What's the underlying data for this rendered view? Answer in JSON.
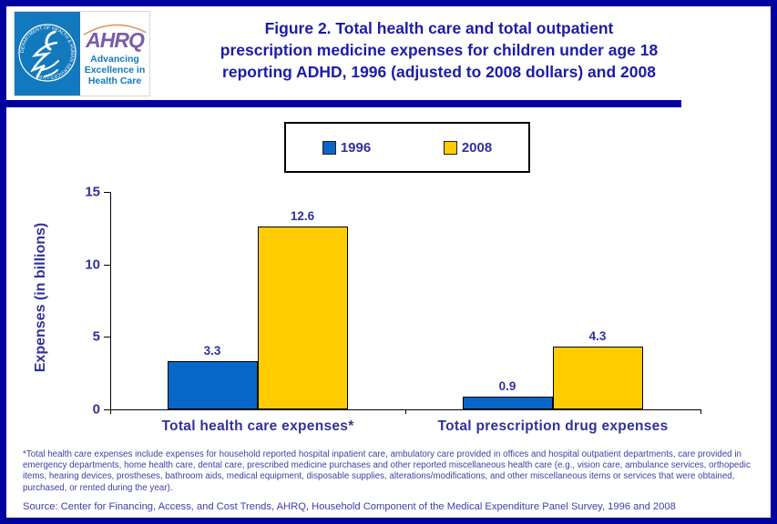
{
  "colors": {
    "border_navy": "#0101A0",
    "title_navy": "#1C1CA8",
    "chart_text": "#31319C",
    "note_text": "#4040A8",
    "bar_1996_blue": "#0667C9",
    "bar_2008_yellow": "#FFCC00",
    "hhs_blue": "#1279BE",
    "ahrq_purple": "#7A5CA8",
    "arc_orange": "#E0995A"
  },
  "logo": {
    "seal_text": "DEPARTMENT OF HEALTH & HUMAN SERVICES • USA",
    "ahrq": "AHRQ",
    "tagline_lines": [
      "Advancing",
      "Excellence in",
      "Health Care"
    ]
  },
  "header": {
    "title": "Figure 2. Total health care and total outpatient prescription medicine expenses for children under age 18 reporting ADHD, 1996 (adjusted to 2008 dollars) and 2008",
    "title_lines": [
      "Figure 2. Total health care and total outpatient",
      "prescription medicine expenses for children under age 18",
      "reporting ADHD, 1996 (adjusted to 2008 dollars) and 2008"
    ]
  },
  "chart_data": {
    "type": "bar",
    "title": "Figure 2. Total health care and total outpatient prescription medicine expenses for children under age 18 reporting ADHD, 1996 (adjusted to 2008 dollars) and 2008",
    "categories": [
      "Total health care expenses*",
      "Total prescription drug expenses"
    ],
    "series": [
      {
        "name": "1996",
        "color": "#0667C9",
        "values": [
          3.3,
          0.9
        ]
      },
      {
        "name": "2008",
        "color": "#FFCC00",
        "values": [
          12.6,
          4.3
        ]
      }
    ],
    "data_labels": [
      [
        "3.3",
        "0.9"
      ],
      [
        "12.6",
        "4.3"
      ]
    ],
    "xlabel": "",
    "ylabel": "Expenses  (in billions)",
    "ylim": [
      0,
      15
    ],
    "yticks": [
      0,
      5,
      10,
      15
    ],
    "grid": false,
    "legend_position": "top"
  },
  "footnote": "*Total health care expenses include expenses for household reported hospital inpatient care, ambulatory care provided in offices and hospital outpatient departments, care provided in emergency departments, home health care, dental care, prescribed medicine purchases and other reported miscellaneous health care (e.g., vision care, ambulance services, orthopedic items, hearing devices, prostheses, bathroom aids, medical equipment, disposable supplies, alterations/modifications, and other miscellaneous items or services that were obtained, purchased, or rented during the year).",
  "source": "Source: Center for Financing, Access, and Cost Trends, AHRQ, Household Component of the Medical Expenditure Panel Survey, 1996 and 2008"
}
